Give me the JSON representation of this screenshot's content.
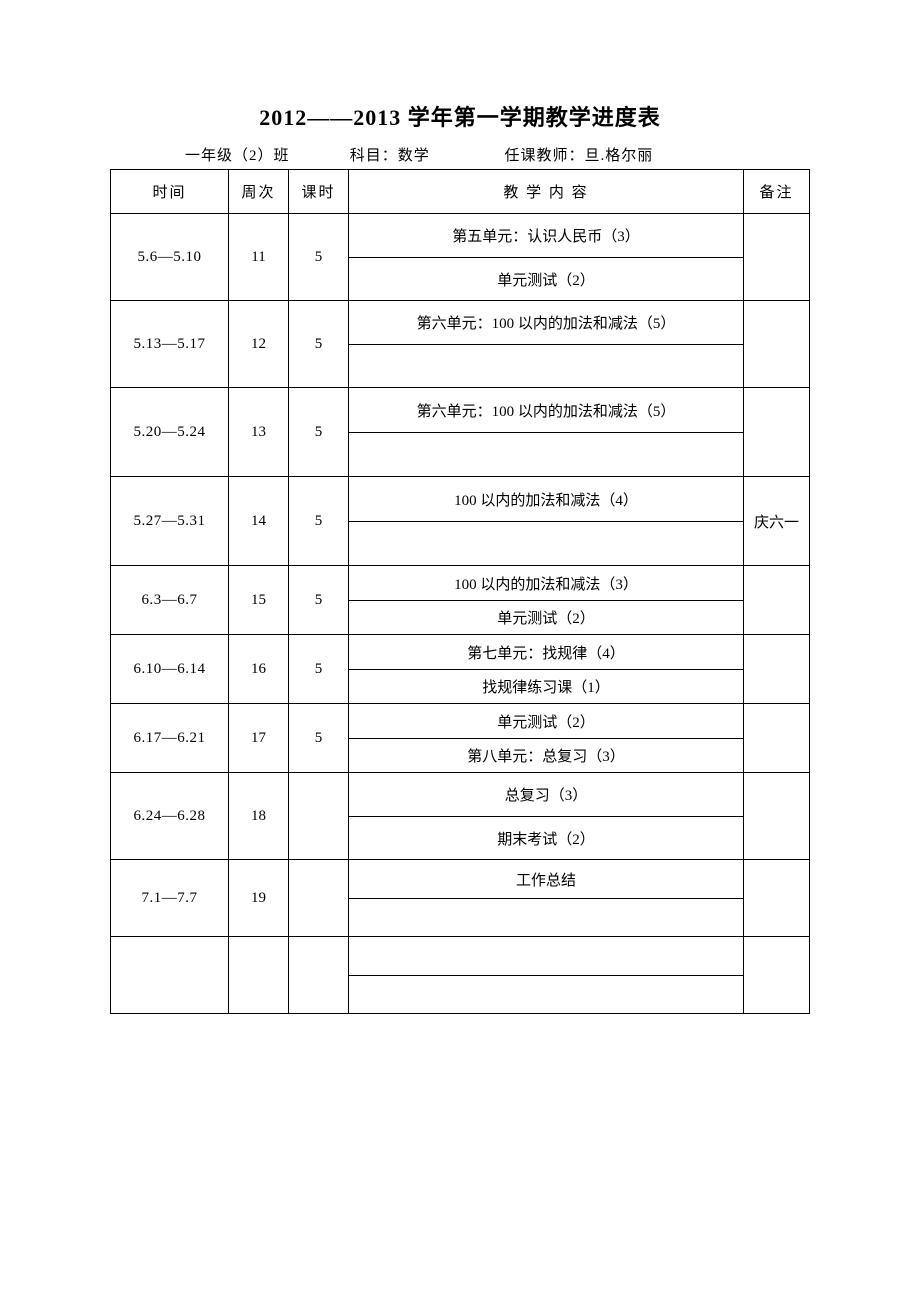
{
  "title": "2012——2013 学年第一学期教学进度表",
  "subtitle": {
    "class": "一年级（2）班",
    "subject_label": "科目：",
    "subject": "数学",
    "teacher_label": "任课教师：",
    "teacher": "旦.格尔丽"
  },
  "headers": {
    "time": "时间",
    "week": "周次",
    "hours": "课时",
    "content": "教 学 内 容",
    "note": "备注"
  },
  "rows": [
    {
      "time": "5.6—5.10",
      "week": "11",
      "hours": "5",
      "content": [
        "第五单元：认识人民币（3）",
        "单元测试（2）"
      ],
      "note": "",
      "css": "row-h-tall"
    },
    {
      "time": "5.13—5.17",
      "week": "12",
      "hours": "5",
      "content": [
        "第六单元：100 以内的加法和减法（5）",
        ""
      ],
      "note": "",
      "css": "row-h-tall"
    },
    {
      "time": "5.20—5.24",
      "week": "13",
      "hours": "5",
      "content": [
        "第六单元：100 以内的加法和减法（5）",
        ""
      ],
      "note": "",
      "css": "row-h-tall2"
    },
    {
      "time": "5.27—5.31",
      "week": "14",
      "hours": "5",
      "content": [
        "100 以内的加法和减法（4）",
        ""
      ],
      "note": "庆六一",
      "css": "row-h-tall2"
    },
    {
      "time": "6.3—6.7",
      "week": "15",
      "hours": "5",
      "content": [
        "100 以内的加法和减法（3）",
        "单元测试（2）"
      ],
      "note": "",
      "css": "row-h-med"
    },
    {
      "time": "6.10—6.14",
      "week": "16",
      "hours": "5",
      "content": [
        "第七单元：找规律（4）",
        "找规律练习课（1）"
      ],
      "note": "",
      "css": "row-h-med"
    },
    {
      "time": "6.17—6.21",
      "week": "17",
      "hours": "5",
      "content": [
        "单元测试（2）",
        "第八单元：总复习（3）"
      ],
      "note": "",
      "css": "row-h-med"
    },
    {
      "time": "6.24—6.28",
      "week": "18",
      "hours": "",
      "content": [
        "总复习（3）",
        "期末考试（2）"
      ],
      "note": "",
      "css": "row-h-tall"
    },
    {
      "time": "7.1—7.7",
      "week": "19",
      "hours": "",
      "content": [
        "工作总结",
        ""
      ],
      "note": "",
      "css": "row-h-19"
    },
    {
      "time": "",
      "week": "",
      "hours": "",
      "content": [
        "",
        ""
      ],
      "note": "",
      "css": "row-h-last"
    }
  ]
}
